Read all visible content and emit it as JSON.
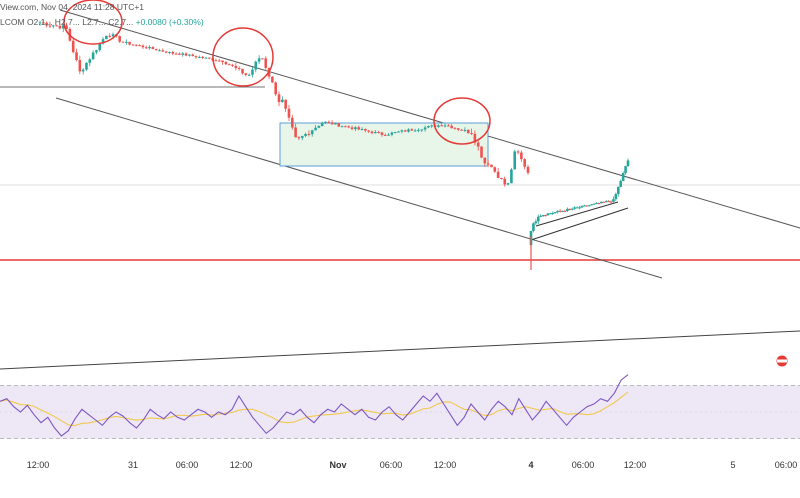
{
  "header": {
    "source": "View.com, Nov 04, 2024 11:28 UTC+1",
    "symbol": "LCOM",
    "ohlc": "O2.1... H2.7... L2.7... C2.7...",
    "change": "+0.0080 (+0.30%)"
  },
  "colors": {
    "up": "#26a69a",
    "down": "#ef5350",
    "rsi": "#7e57c2",
    "rsi_ma": "#f2c94c",
    "rsi_band": "#ede7f6",
    "support": "#e53935",
    "channel": "#555555",
    "range_box_fill": "#e8f5e9",
    "range_box_border": "#5c9fd6",
    "circle": "#e53935"
  },
  "chart_data": {
    "type": "candlestick",
    "x_axis": {
      "ticks": [
        "12:00",
        "31",
        "06:00",
        "12:00",
        "Nov",
        "06:00",
        "12:00",
        "4",
        "06:00",
        "12:00",
        "5",
        "06:00"
      ],
      "bold_ticks": [
        "Nov",
        "4"
      ]
    },
    "annotations": {
      "descending_channel": true,
      "consolidation_box": true,
      "rising_wedge": true,
      "support_line": true,
      "circled_rejections": 3,
      "alert_marker": true
    },
    "price": {
      "ylim": [
        0,
        100
      ],
      "series": [
        {
          "start": 99,
          "end": 97,
          "n": 8,
          "vol": 2.0
        },
        {
          "start": 96,
          "end": 78,
          "n": 5,
          "vol": 2.5
        },
        {
          "start": 80,
          "end": 94,
          "n": 8,
          "vol": 2.0
        },
        {
          "start": 94,
          "end": 90,
          "n": 6,
          "vol": 1.8
        },
        {
          "start": 90,
          "end": 86,
          "n": 14,
          "vol": 1.0
        },
        {
          "start": 86,
          "end": 83,
          "n": 14,
          "vol": 1.0
        },
        {
          "start": 83,
          "end": 77,
          "n": 8,
          "vol": 1.6
        },
        {
          "start": 77,
          "end": 84,
          "n": 4,
          "vol": 2.5
        },
        {
          "start": 84,
          "end": 66,
          "n": 6,
          "vol": 2.2
        },
        {
          "start": 66,
          "end": 50,
          "n": 5,
          "vol": 2.0
        },
        {
          "start": 50,
          "end": 57,
          "n": 8,
          "vol": 2.0
        },
        {
          "start": 57,
          "end": 52,
          "n": 18,
          "vol": 1.2
        },
        {
          "start": 52,
          "end": 56,
          "n": 18,
          "vol": 1.2
        },
        {
          "start": 56,
          "end": 53,
          "n": 8,
          "vol": 1.4
        },
        {
          "start": 53,
          "end": 40,
          "n": 5,
          "vol": 2.5
        },
        {
          "start": 40,
          "end": 31,
          "n": 6,
          "vol": 2.0
        },
        {
          "start": 31,
          "end": 44,
          "n": 3,
          "vol": 1.8
        },
        {
          "start": 44,
          "end": 36,
          "n": 4,
          "vol": 1.5
        },
        {
          "start": 12,
          "end": 18,
          "n": 4,
          "vol": 1.5
        },
        {
          "start": 18,
          "end": 24,
          "n": 30,
          "vol": 0.9
        },
        {
          "start": 24,
          "end": 41,
          "n": 7,
          "vol": 1.5
        }
      ]
    },
    "rsi": {
      "ylim": [
        20,
        80
      ],
      "bands": [
        30,
        70
      ],
      "values": [
        58,
        60,
        54,
        50,
        55,
        48,
        42,
        46,
        38,
        32,
        36,
        45,
        52,
        48,
        44,
        40,
        46,
        50,
        47,
        42,
        38,
        44,
        52,
        48,
        45,
        50,
        46,
        44,
        48,
        52,
        50,
        46,
        50,
        48,
        52,
        62,
        54,
        46,
        40,
        34,
        38,
        44,
        50,
        48,
        52,
        46,
        42,
        48,
        52,
        50,
        56,
        52,
        48,
        52,
        46,
        44,
        50,
        54,
        48,
        44,
        50,
        56,
        62,
        58,
        64,
        56,
        48,
        40,
        46,
        56,
        50,
        44,
        52,
        58,
        54,
        48,
        60,
        52,
        44,
        50,
        58,
        52,
        46,
        40,
        46,
        50,
        54,
        56,
        60,
        58,
        64,
        74,
        78
      ]
    }
  }
}
